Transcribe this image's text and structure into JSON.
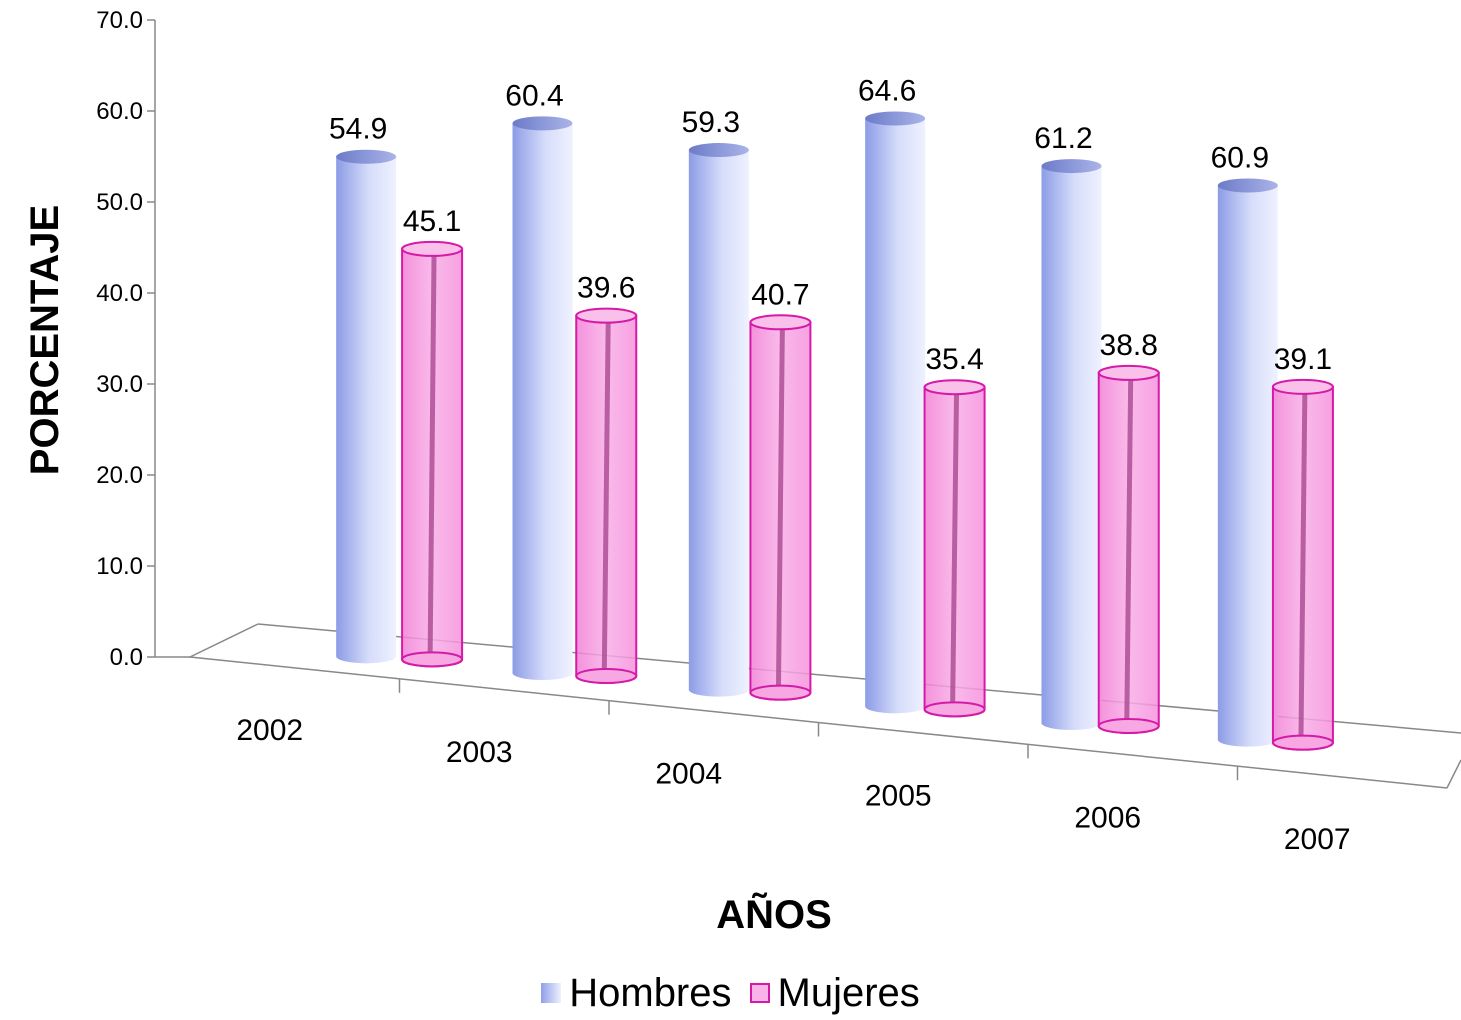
{
  "chart_data": {
    "type": "bar",
    "style": "3d-cylinder",
    "categories": [
      "2002",
      "2003",
      "2004",
      "2005",
      "2006",
      "2007"
    ],
    "series": [
      {
        "name": "Hombres",
        "values": [
          54.9,
          60.4,
          59.3,
          64.6,
          61.2,
          60.9
        ],
        "color": "#c4ccf4"
      },
      {
        "name": "Mujeres",
        "values": [
          45.1,
          39.6,
          40.7,
          35.4,
          38.8,
          39.1
        ],
        "color": "#f59be0"
      }
    ],
    "data_labels": {
      "Hombres": [
        "54.9",
        "60.4",
        "59.3",
        "64.6",
        "61.2",
        "60.9"
      ],
      "Mujeres": [
        "45.1",
        "39.6",
        "40.7",
        "35.4",
        "38.8",
        "39.1"
      ]
    },
    "yticks": [
      "0.0",
      "10.0",
      "20.0",
      "30.0",
      "40.0",
      "50.0",
      "60.0",
      "70.0"
    ],
    "xlabel": "AÑOS",
    "ylabel": "PORCENTAJE",
    "ylim": [
      0,
      70
    ],
    "grid": false,
    "legend": "bottom"
  }
}
